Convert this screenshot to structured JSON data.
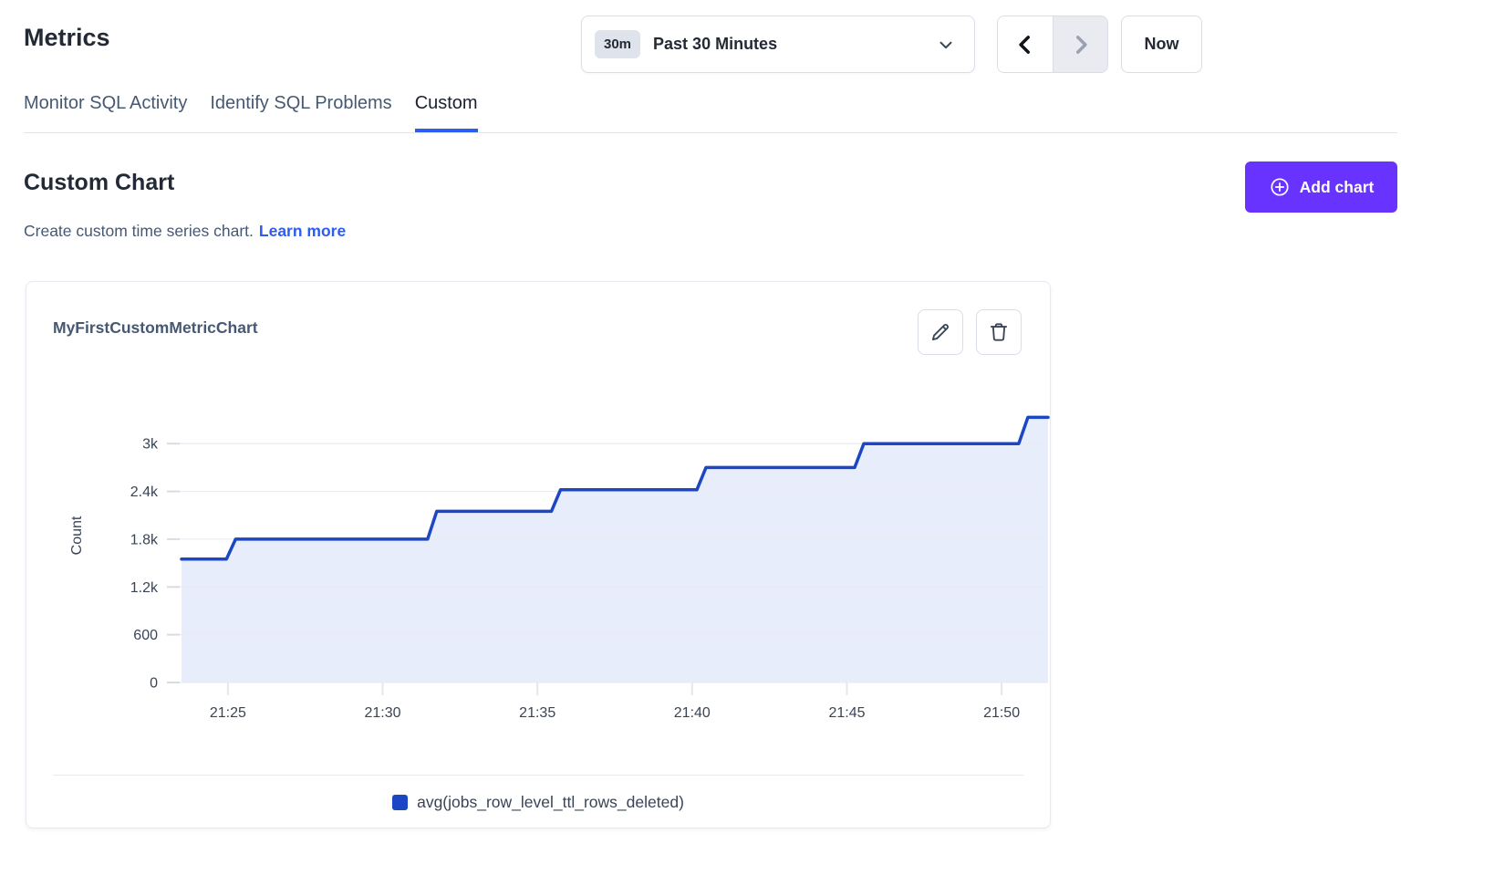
{
  "page_title": "Metrics",
  "time_controls": {
    "range_badge": "30m",
    "range_label": "Past 30 Minutes",
    "now_label": "Now"
  },
  "tabs": [
    {
      "label": "Monitor SQL Activity",
      "active": false
    },
    {
      "label": "Identify SQL Problems",
      "active": false
    },
    {
      "label": "Custom",
      "active": true
    }
  ],
  "custom_section": {
    "title": "Custom Chart",
    "description": "Create custom time series chart.",
    "learn_more": "Learn more",
    "add_chart": "Add chart"
  },
  "chart_card": {
    "title": "MyFirstCustomMetricChart"
  },
  "chart_data": {
    "type": "area",
    "step": true,
    "title": "MyFirstCustomMetricChart",
    "xlabel": "",
    "ylabel": "Count",
    "x_domain_minutes": [
      23.5,
      51.5
    ],
    "x_ticks": [
      {
        "t": 25,
        "label": "21:25"
      },
      {
        "t": 30,
        "label": "21:30"
      },
      {
        "t": 35,
        "label": "21:35"
      },
      {
        "t": 40,
        "label": "21:40"
      },
      {
        "t": 45,
        "label": "21:45"
      },
      {
        "t": 50,
        "label": "21:50"
      }
    ],
    "ylim": [
      0,
      3690
    ],
    "y_ticks": [
      {
        "v": 0,
        "label": "0"
      },
      {
        "v": 600,
        "label": "600"
      },
      {
        "v": 1200,
        "label": "1.2k"
      },
      {
        "v": 1800,
        "label": "1.8k"
      },
      {
        "v": 2400,
        "label": "2.4k"
      },
      {
        "v": 3000,
        "label": "3k"
      }
    ],
    "grid": "horizontal",
    "legend_position": "bottom",
    "series": [
      {
        "name": "avg(jobs_row_level_ttl_rows_deleted)",
        "color": "#1C47C4",
        "fill_color": "#E8EDFB",
        "points": [
          {
            "t": 23.5,
            "time": "21:23:30",
            "value": 1550
          },
          {
            "t": 25.1,
            "time": "21:25:06",
            "value": 1800
          },
          {
            "t": 31.6,
            "time": "21:31:36",
            "value": 2150
          },
          {
            "t": 35.6,
            "time": "21:35:36",
            "value": 2420
          },
          {
            "t": 40.3,
            "time": "21:40:18",
            "value": 2700
          },
          {
            "t": 45.4,
            "time": "21:45:24",
            "value": 3000
          },
          {
            "t": 50.7,
            "time": "21:50:42",
            "value": 3330
          },
          {
            "t": 51.5,
            "time": "21:51:30",
            "value": 3330
          }
        ]
      }
    ]
  },
  "colors": {
    "accent_purple": "#6933FF",
    "link_blue": "#2C5CF2",
    "tab_active_underline": "#2C5CF2",
    "series_blue": "#1C47C4",
    "series_fill": "#E8EDFB",
    "heading_text": "#242A35",
    "muted_text": "#475872"
  }
}
